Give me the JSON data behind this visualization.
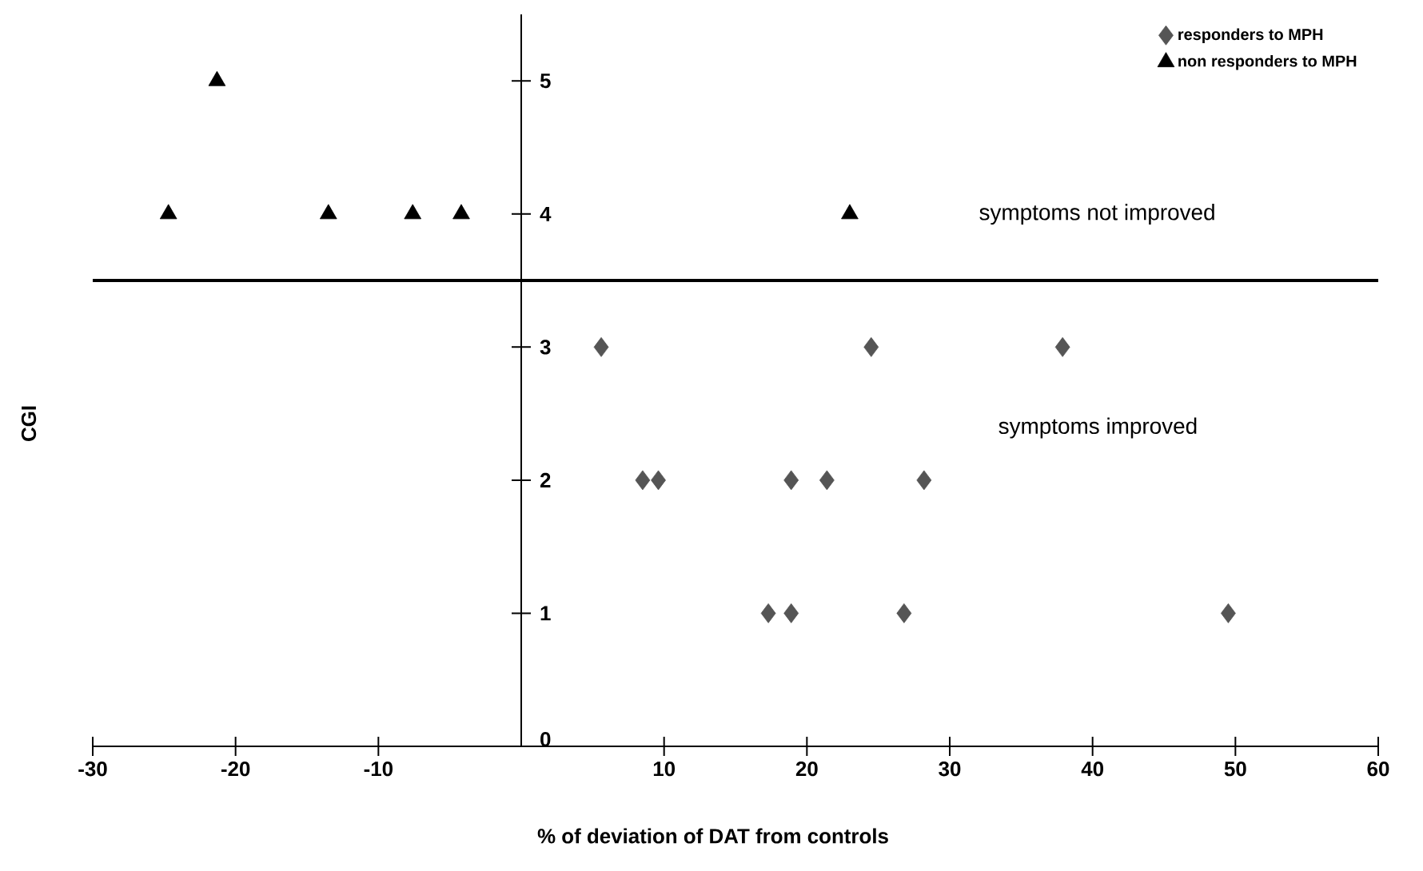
{
  "chart_data": {
    "type": "scatter",
    "xlabel": "% of deviation of DAT from controls",
    "ylabel": "CGI",
    "xlim": [
      -30,
      60
    ],
    "ylim": [
      0,
      5.5
    ],
    "xticks": [
      -30,
      -20,
      -10,
      10,
      20,
      30,
      40,
      50,
      60
    ],
    "yticks": [
      0,
      1,
      2,
      3,
      4,
      5
    ],
    "series": [
      {
        "name": "responders to MPH",
        "color": "#555555",
        "marker": "diamond",
        "x": [
          5.6,
          24.5,
          37.9,
          8.5,
          9.6,
          18.9,
          21.4,
          28.2,
          17.3,
          18.9,
          26.8,
          49.5
        ],
        "values": [
          3,
          3,
          3,
          2,
          2,
          2,
          2,
          2,
          1,
          1,
          1,
          1
        ]
      },
      {
        "name": "non responders to MPH",
        "color": "#000000",
        "marker": "triangle",
        "x": [
          -24.7,
          -21.3,
          -13.5,
          -7.6,
          -4.2,
          23.0
        ],
        "values": [
          4,
          5,
          4,
          4,
          4,
          4
        ]
      }
    ],
    "ref_lines": [
      {
        "axis": "y",
        "value": 3.5,
        "color": "#000000"
      }
    ],
    "annotations": [
      "symptoms not improved",
      "symptoms improved"
    ],
    "legend": "top right"
  }
}
